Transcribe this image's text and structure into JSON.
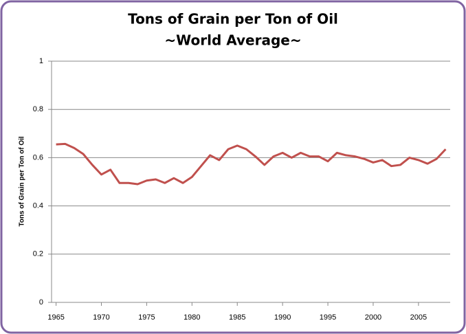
{
  "chart_data": {
    "type": "line",
    "title": "Tons of Grain per Ton of Oil",
    "subtitle": "~World Average~",
    "y_label": "Tons of Grain per Ton of Oil",
    "x": [
      1965,
      1966,
      1967,
      1968,
      1969,
      1970,
      1971,
      1972,
      1973,
      1974,
      1975,
      1976,
      1977,
      1978,
      1979,
      1980,
      1981,
      1982,
      1983,
      1984,
      1985,
      1986,
      1987,
      1988,
      1989,
      1990,
      1991,
      1992,
      1993,
      1994,
      1995,
      1996,
      1997,
      1998,
      1999,
      2000,
      2001,
      2002,
      2003,
      2004,
      2005,
      2006,
      2007,
      2008
    ],
    "values": [
      0.655,
      0.657,
      0.64,
      0.615,
      0.57,
      0.53,
      0.55,
      0.495,
      0.495,
      0.49,
      0.505,
      0.51,
      0.495,
      0.515,
      0.495,
      0.52,
      0.565,
      0.61,
      0.59,
      0.635,
      0.65,
      0.635,
      0.605,
      0.57,
      0.605,
      0.62,
      0.6,
      0.62,
      0.605,
      0.605,
      0.585,
      0.62,
      0.61,
      0.605,
      0.595,
      0.58,
      0.59,
      0.565,
      0.57,
      0.6,
      0.59,
      0.575,
      0.595,
      0.635
    ],
    "color": "#c0504d",
    "xlim": [
      1964.5,
      2008.5
    ],
    "xticks": [
      1965,
      1970,
      1975,
      1980,
      1985,
      1990,
      1995,
      2000,
      2005
    ],
    "ylim": [
      0,
      1
    ],
    "yticks": [
      0,
      0.2,
      0.4,
      0.6,
      0.8,
      1
    ],
    "grid": true
  }
}
